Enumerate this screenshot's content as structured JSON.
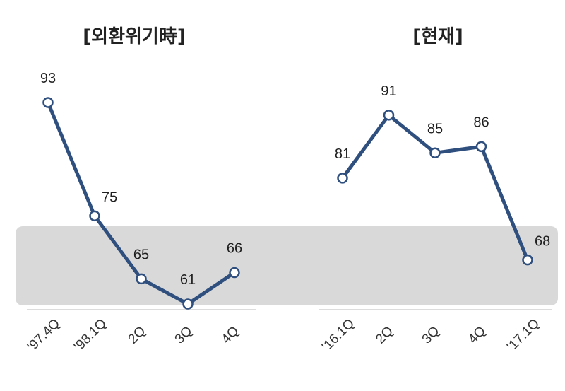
{
  "colors": {
    "line": "#2f4f7f",
    "marker_fill": "#ffffff",
    "band": "#d9d9d9",
    "axis": "#d0d0d0"
  },
  "chart_data": [
    {
      "type": "line",
      "title": "[외환위기時]",
      "categories": [
        "'97.4Q",
        "'98.1Q",
        "2Q",
        "3Q",
        "4Q"
      ],
      "values": [
        93,
        75,
        65,
        61,
        66
      ],
      "data_labels": [
        "93",
        "75",
        "65",
        "61",
        "66"
      ],
      "xlabel": "",
      "ylabel": "",
      "grid": false
    },
    {
      "type": "line",
      "title": "[현재]",
      "categories": [
        "'16.1Q",
        "2Q",
        "3Q",
        "4Q",
        "'17.1Q"
      ],
      "values": [
        81,
        91,
        85,
        86,
        68
      ],
      "data_labels": [
        "81",
        "91",
        "85",
        "86",
        "68"
      ],
      "xlabel": "",
      "ylabel": "",
      "grid": false
    }
  ]
}
